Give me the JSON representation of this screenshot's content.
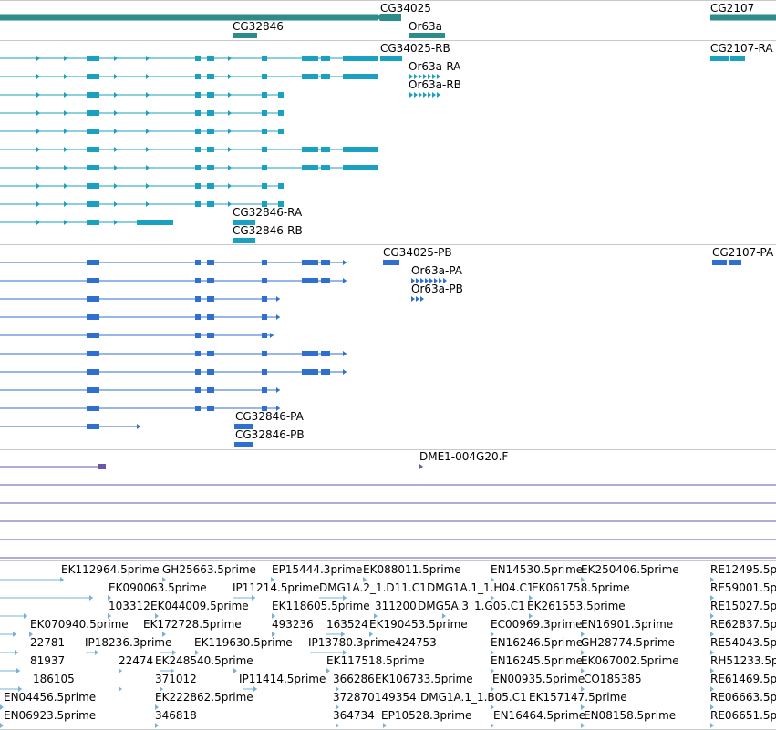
{
  "colors": {
    "gene": "#2e8b8b",
    "mrna": "#1aa0c0",
    "protein": "#2f6fd0",
    "match": "#6a55a8",
    "est": "#7ab0d8"
  },
  "tracks": [
    {
      "id": "genes",
      "color_key": "gene",
      "labels": [
        {
          "text": "CG34025",
          "name": "gene-label-cg34025"
        },
        {
          "text": "CG2107",
          "name": "gene-label-cg2107"
        },
        {
          "text": "CG32846",
          "name": "gene-label-cg32846"
        },
        {
          "text": "Or63a",
          "name": "gene-label-or63a"
        }
      ]
    },
    {
      "id": "transcripts",
      "color_key": "mrna",
      "labels": [
        {
          "text": "CG34025-RB",
          "name": "transcript-label-cg34025-rb"
        },
        {
          "text": "CG2107-RA",
          "name": "transcript-label-cg2107-ra"
        },
        {
          "text": "Or63a-RA",
          "name": "transcript-label-or63a-ra"
        },
        {
          "text": "Or63a-RB",
          "name": "transcript-label-or63a-rb"
        },
        {
          "text": "CG32846-RA",
          "name": "transcript-label-cg32846-ra"
        },
        {
          "text": "CG32846-RB",
          "name": "transcript-label-cg32846-rb"
        }
      ]
    },
    {
      "id": "proteins",
      "color_key": "protein",
      "labels": [
        {
          "text": "CG34025-PB",
          "name": "protein-label-cg34025-pb"
        },
        {
          "text": "CG2107-PA",
          "name": "protein-label-cg2107-pa"
        },
        {
          "text": "Or63a-PA",
          "name": "protein-label-or63a-pa"
        },
        {
          "text": "Or63a-PB",
          "name": "protein-label-or63a-pb"
        },
        {
          "text": "CG32846-PA",
          "name": "protein-label-cg32846-pa"
        },
        {
          "text": "CG32846-PB",
          "name": "protein-label-cg32846-pb"
        }
      ]
    },
    {
      "id": "matches",
      "color_key": "match",
      "labels": [
        {
          "text": "DME1-004G20.F",
          "name": "match-label-dme1-004g20-f"
        }
      ]
    },
    {
      "id": "ests",
      "color_key": "est",
      "labels": [
        {
          "text": "EK112964.5prime",
          "name": "est-label"
        },
        {
          "text": "GH25663.5prime",
          "name": "est-label"
        },
        {
          "text": "EP15444.3prime",
          "name": "est-label"
        },
        {
          "text": "EK088011.5prime",
          "name": "est-label"
        },
        {
          "text": "EN14530.5prime",
          "name": "est-label"
        },
        {
          "text": "EK250406.5prime",
          "name": "est-label"
        },
        {
          "text": "RE12495.5p",
          "name": "est-label"
        },
        {
          "text": "EK090063.5prime",
          "name": "est-label"
        },
        {
          "text": "IP11214.5prime",
          "name": "est-label"
        },
        {
          "text": "DMG1A.2_1.D11.C1",
          "name": "est-label"
        },
        {
          "text": "DMG1A.1_1.H04.C1",
          "name": "est-label"
        },
        {
          "text": "EK061758.5prime",
          "name": "est-label"
        },
        {
          "text": "RE59001.5p",
          "name": "est-label"
        },
        {
          "text": "103312",
          "name": "est-label"
        },
        {
          "text": "EK044009.5prime",
          "name": "est-label"
        },
        {
          "text": "EK118605.5prime",
          "name": "est-label"
        },
        {
          "text": "311200",
          "name": "est-label"
        },
        {
          "text": "DMG5A.3_1.G05.C1",
          "name": "est-label"
        },
        {
          "text": "EK261553.5prime",
          "name": "est-label"
        },
        {
          "text": "RE15027.5p",
          "name": "est-label"
        },
        {
          "text": "EK070940.5prime",
          "name": "est-label"
        },
        {
          "text": "EK172728.5prime",
          "name": "est-label"
        },
        {
          "text": "493236",
          "name": "est-label"
        },
        {
          "text": "163524",
          "name": "est-label"
        },
        {
          "text": "EK190453.5prime",
          "name": "est-label"
        },
        {
          "text": "EC00969.3prime",
          "name": "est-label"
        },
        {
          "text": "EN16901.5prime",
          "name": "est-label"
        },
        {
          "text": "RE62837.5p",
          "name": "est-label"
        },
        {
          "text": "22781",
          "name": "est-label"
        },
        {
          "text": "IP18236.3prime",
          "name": "est-label"
        },
        {
          "text": "EK119630.5prime",
          "name": "est-label"
        },
        {
          "text": "IP13780.3prime",
          "name": "est-label"
        },
        {
          "text": "424753",
          "name": "est-label"
        },
        {
          "text": "EN16246.5prime",
          "name": "est-label"
        },
        {
          "text": "GH28774.5prime",
          "name": "est-label"
        },
        {
          "text": "RE54043.5p",
          "name": "est-label"
        },
        {
          "text": "81937",
          "name": "est-label"
        },
        {
          "text": "22474",
          "name": "est-label"
        },
        {
          "text": "EK248540.5prime",
          "name": "est-label"
        },
        {
          "text": "EK117518.5prime",
          "name": "est-label"
        },
        {
          "text": "EN16245.5prime",
          "name": "est-label"
        },
        {
          "text": "EK067002.5prime",
          "name": "est-label"
        },
        {
          "text": "RH51233.5p",
          "name": "est-label"
        },
        {
          "text": "186105",
          "name": "est-label"
        },
        {
          "text": "371012",
          "name": "est-label"
        },
        {
          "text": "IP11414.5prime",
          "name": "est-label"
        },
        {
          "text": "366286",
          "name": "est-label"
        },
        {
          "text": "EK106733.5prime",
          "name": "est-label"
        },
        {
          "text": "EN00935.5prime",
          "name": "est-label"
        },
        {
          "text": "CO185385",
          "name": "est-label"
        },
        {
          "text": "RE61469.5p",
          "name": "est-label"
        },
        {
          "text": "EN04456.5prime",
          "name": "est-label"
        },
        {
          "text": "EK222862.5prime",
          "name": "est-label"
        },
        {
          "text": "372870149354",
          "name": "est-label"
        },
        {
          "text": "DMG1A.1_1.B05.C1",
          "name": "est-label"
        },
        {
          "text": "EK157147.5prime",
          "name": "est-label"
        },
        {
          "text": "RE06663.5p",
          "name": "est-label"
        },
        {
          "text": "EN06923.5prime",
          "name": "est-label"
        },
        {
          "text": "346818",
          "name": "est-label"
        },
        {
          "text": "364734",
          "name": "est-label"
        },
        {
          "text": "EP10528.3prime",
          "name": "est-label"
        },
        {
          "text": "EN16464.5prime",
          "name": "est-label"
        },
        {
          "text": "EN08158.5prime",
          "name": "est-label"
        },
        {
          "text": "RE06651.5p",
          "name": "est-label"
        }
      ]
    }
  ]
}
